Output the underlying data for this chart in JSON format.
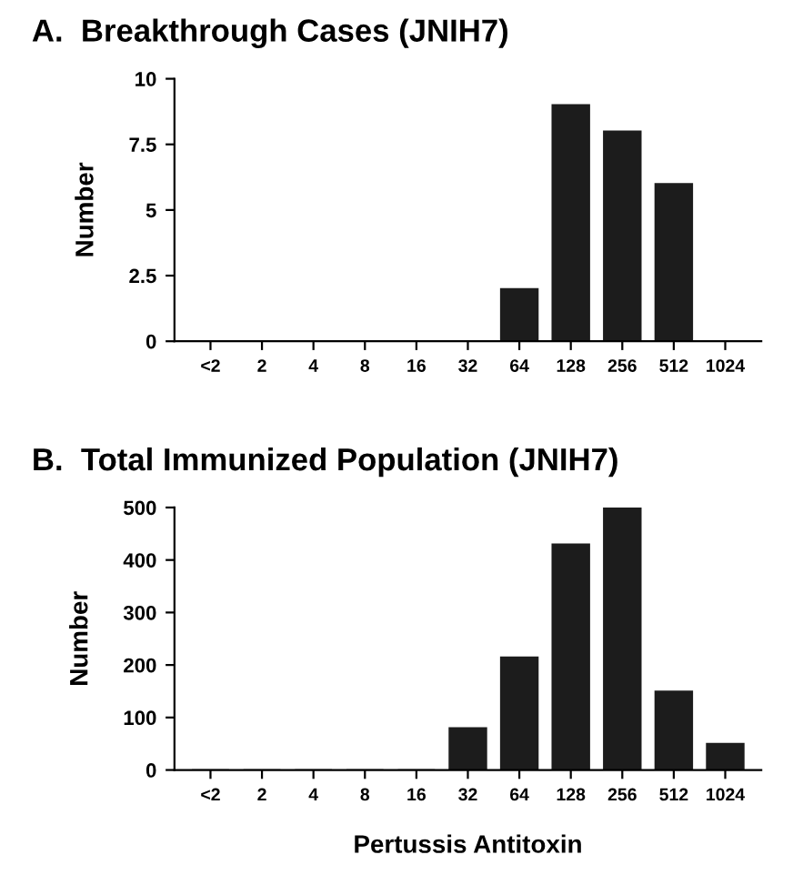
{
  "chart_data": [
    {
      "type": "bar",
      "title": "A.  Breakthrough Cases (JNIH7)",
      "ylabel": "Number",
      "categories": [
        "<2",
        "2",
        "4",
        "8",
        "16",
        "32",
        "64",
        "128",
        "256",
        "512",
        "1024"
      ],
      "series": [
        {
          "color": "#1c1c1c",
          "values": [
            0,
            0,
            0,
            0,
            0,
            0,
            2,
            9,
            8,
            6,
            0
          ]
        }
      ],
      "ylim": [
        0,
        10
      ],
      "yticks": [
        0,
        {
          "value": 2.5,
          "label": "2.5"
        },
        5,
        {
          "value": 7.5,
          "label": "7.5"
        },
        10
      ],
      "grid": false,
      "legend": false
    },
    {
      "type": "bar",
      "title": "B.  Total Immunized Population (JNIH7)",
      "ylabel": "Number",
      "xlabel": "Pertussis Antitoxin",
      "categories": [
        "<2",
        "2",
        "4",
        "8",
        "16",
        "32",
        "64",
        "128",
        "256",
        "512",
        "1024"
      ],
      "series": [
        {
          "color": "#1c1c1c",
          "values": [
            0,
            0,
            0,
            0,
            0,
            80,
            215,
            430,
            500,
            150,
            50
          ]
        }
      ],
      "ylim": [
        0,
        500
      ],
      "yticks": [
        0,
        100,
        200,
        300,
        400,
        500
      ],
      "grid": false,
      "legend": false
    }
  ]
}
